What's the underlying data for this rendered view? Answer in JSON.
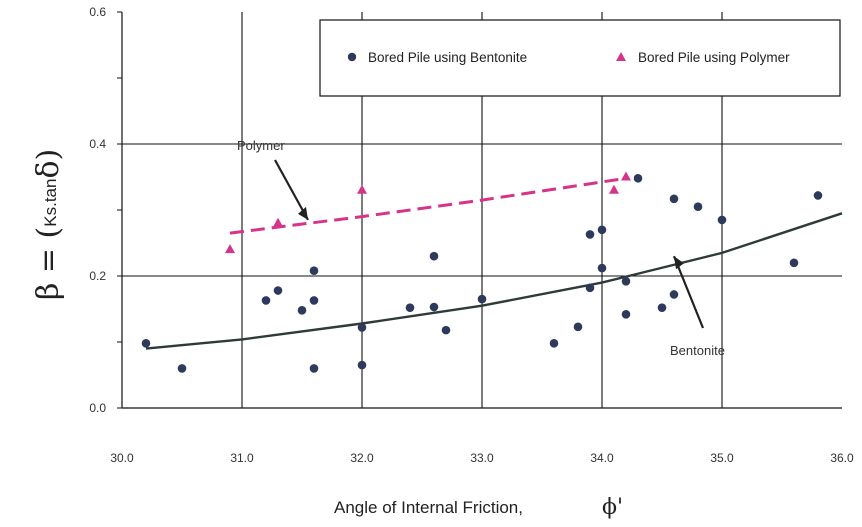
{
  "chart_data": {
    "type": "scatter",
    "xlabel": "Angle of Internal Friction,",
    "xlabel_symbol": "ϕ'",
    "ylabel_main": "β = (",
    "ylabel_sub": "Ks.tan",
    "ylabel_end": "δ)",
    "xlim": [
      30.0,
      36.0
    ],
    "ylim": [
      0.0,
      0.6
    ],
    "x_ticks": [
      "30.0",
      "31.0",
      "32.0",
      "33.0",
      "34.0",
      "35.0",
      "36.0"
    ],
    "y_ticks": [
      "0.0",
      "0.2",
      "0.4",
      "0.6"
    ],
    "grid": true,
    "legend_position": "top-right",
    "series": [
      {
        "name": "Bored Pile using Bentonite",
        "marker": "circle",
        "color": "#2e3a5c",
        "points": [
          [
            30.2,
            0.098
          ],
          [
            30.5,
            0.06
          ],
          [
            31.2,
            0.163
          ],
          [
            31.3,
            0.178
          ],
          [
            31.5,
            0.148
          ],
          [
            31.6,
            0.208
          ],
          [
            31.6,
            0.163
          ],
          [
            31.6,
            0.06
          ],
          [
            32.0,
            0.122
          ],
          [
            32.0,
            0.065
          ],
          [
            32.4,
            0.152
          ],
          [
            32.6,
            0.23
          ],
          [
            32.6,
            0.153
          ],
          [
            32.7,
            0.118
          ],
          [
            33.0,
            0.165
          ],
          [
            33.6,
            0.098
          ],
          [
            33.8,
            0.123
          ],
          [
            33.9,
            0.263
          ],
          [
            33.9,
            0.182
          ],
          [
            34.0,
            0.27
          ],
          [
            34.0,
            0.212
          ],
          [
            34.2,
            0.192
          ],
          [
            34.2,
            0.142
          ],
          [
            34.3,
            0.348
          ],
          [
            34.5,
            0.152
          ],
          [
            34.6,
            0.317
          ],
          [
            34.6,
            0.172
          ],
          [
            34.8,
            0.305
          ],
          [
            35.0,
            0.285
          ],
          [
            35.6,
            0.22
          ],
          [
            35.8,
            0.322
          ]
        ]
      },
      {
        "name": "Bored Pile using Polymer",
        "marker": "triangle",
        "color": "#d6338a",
        "points": [
          [
            30.9,
            0.24
          ],
          [
            31.3,
            0.28
          ],
          [
            32.0,
            0.33
          ],
          [
            34.1,
            0.33
          ],
          [
            34.2,
            0.35
          ]
        ]
      }
    ],
    "trendlines": [
      {
        "series": "Bentonite",
        "style": "solid",
        "color": "#2f3b3a",
        "points": [
          [
            30.2,
            0.09
          ],
          [
            31.0,
            0.104
          ],
          [
            32.0,
            0.128
          ],
          [
            33.0,
            0.155
          ],
          [
            34.0,
            0.19
          ],
          [
            35.0,
            0.235
          ],
          [
            36.0,
            0.295
          ]
        ]
      },
      {
        "series": "Polymer",
        "style": "dashed",
        "color": "#d6338a",
        "points": [
          [
            30.9,
            0.265
          ],
          [
            32.0,
            0.29
          ],
          [
            33.0,
            0.315
          ],
          [
            34.2,
            0.348
          ]
        ]
      }
    ],
    "annotations": [
      {
        "text": "Polymer",
        "arrow_to": [
          31.55,
          0.285
        ]
      },
      {
        "text": "Bentonite",
        "arrow_to": [
          34.6,
          0.23
        ]
      }
    ]
  }
}
